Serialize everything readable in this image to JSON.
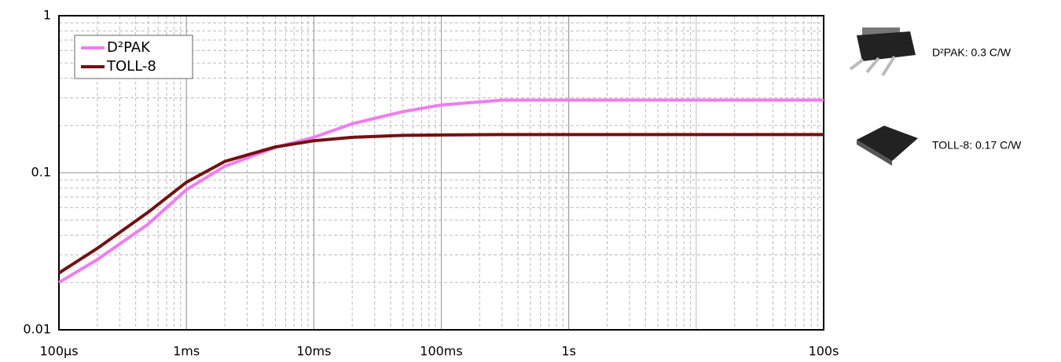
{
  "chart_data": {
    "type": "line",
    "log_x": true,
    "log_y": true,
    "grid": true,
    "x": [
      0.0001,
      0.0002,
      0.0005,
      0.001,
      0.002,
      0.005,
      0.01,
      0.02,
      0.05,
      0.1,
      0.3,
      1,
      10,
      100
    ],
    "series": [
      {
        "name": "D²PAK",
        "color": "#f07cf0",
        "values": [
          0.02,
          0.028,
          0.047,
          0.078,
          0.11,
          0.145,
          0.168,
          0.205,
          0.245,
          0.27,
          0.29,
          0.29,
          0.29,
          0.29
        ]
      },
      {
        "name": "TOLL-8",
        "color": "#741010",
        "values": [
          0.023,
          0.033,
          0.056,
          0.087,
          0.118,
          0.146,
          0.16,
          0.168,
          0.173,
          0.174,
          0.175,
          0.175,
          0.175,
          0.175
        ]
      }
    ],
    "xlim": [
      0.0001,
      100
    ],
    "xticks": [
      {
        "value": 0.0001,
        "label": "100µs"
      },
      {
        "value": 0.001,
        "label": "1ms"
      },
      {
        "value": 0.01,
        "label": "10ms"
      },
      {
        "value": 0.1,
        "label": "100ms"
      },
      {
        "value": 1,
        "label": "1s"
      },
      {
        "value": 100,
        "label": "100s"
      }
    ],
    "ylim": [
      0.01,
      1
    ],
    "yticks": [
      0.01,
      0.1,
      1
    ],
    "legend_position": "upper-left",
    "annotations": [
      "D²PAK: 0.3 C/W",
      "TOLL-8: 0.17 C/W"
    ]
  }
}
